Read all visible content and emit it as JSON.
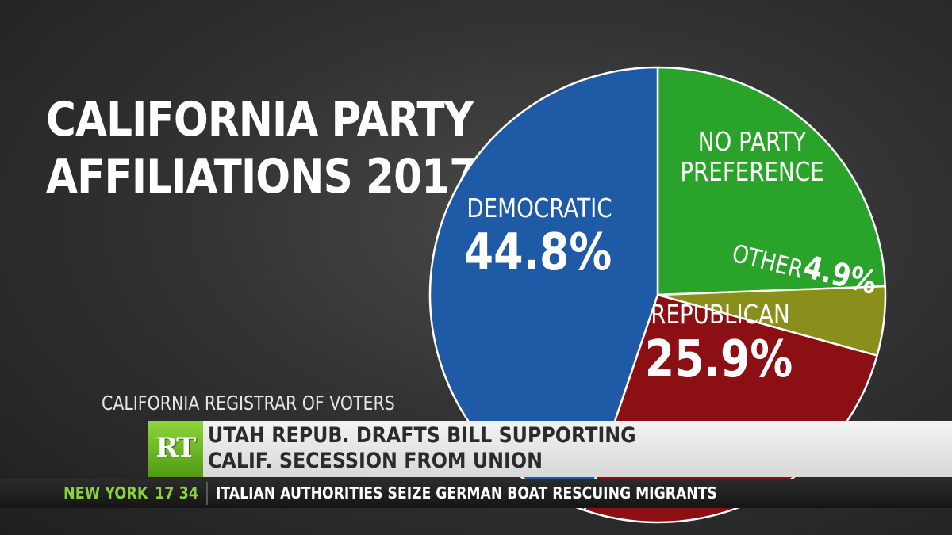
{
  "chart_data": {
    "type": "pie",
    "title": "CALIFORNIA PARTY AFFILIATIONS 2017",
    "title_lines": [
      "CALIFORNIA PARTY",
      "AFFILIATIONS 2017"
    ],
    "source": "CALIFORNIA REGISTRAR OF VOTERS",
    "slices": [
      {
        "name": "DEMOCRATIC",
        "label_lines": [
          "DEMOCRATIC"
        ],
        "value": 44.8,
        "value_label": "44.8%",
        "color": "#1f5aa6"
      },
      {
        "name": "NO PARTY PREFERENCE",
        "label_lines": [
          "NO PARTY",
          "PREFERENCE"
        ],
        "value": 24.4,
        "value_label": "",
        "color": "#29a329"
      },
      {
        "name": "OTHER",
        "label_lines": [
          "OTHER"
        ],
        "value": 4.9,
        "value_label": "4.9%",
        "color": "#8a8f1c"
      },
      {
        "name": "REPUBLICAN",
        "label_lines": [
          "REPUBLICAN"
        ],
        "value": 25.9,
        "value_label": "25.9%",
        "color": "#8c0f14"
      }
    ]
  },
  "lower_third": {
    "logo_text": "RT",
    "headline_lines": [
      "UTAH REPUB. DRAFTS BILL SUPPORTING",
      "CALIF. SECESSION FROM UNION"
    ],
    "ticker_city": "NEW YORK",
    "ticker_time": "17 34",
    "ticker_text": "ITALIAN AUTHORITIES SEIZE GERMAN BOAT RESCUING MIGRANTS"
  },
  "colors": {
    "background": "#333333",
    "rt_green": "#6cb82a",
    "ticker_accent": "#8ad13a",
    "slice_outline": "#ffffff"
  }
}
